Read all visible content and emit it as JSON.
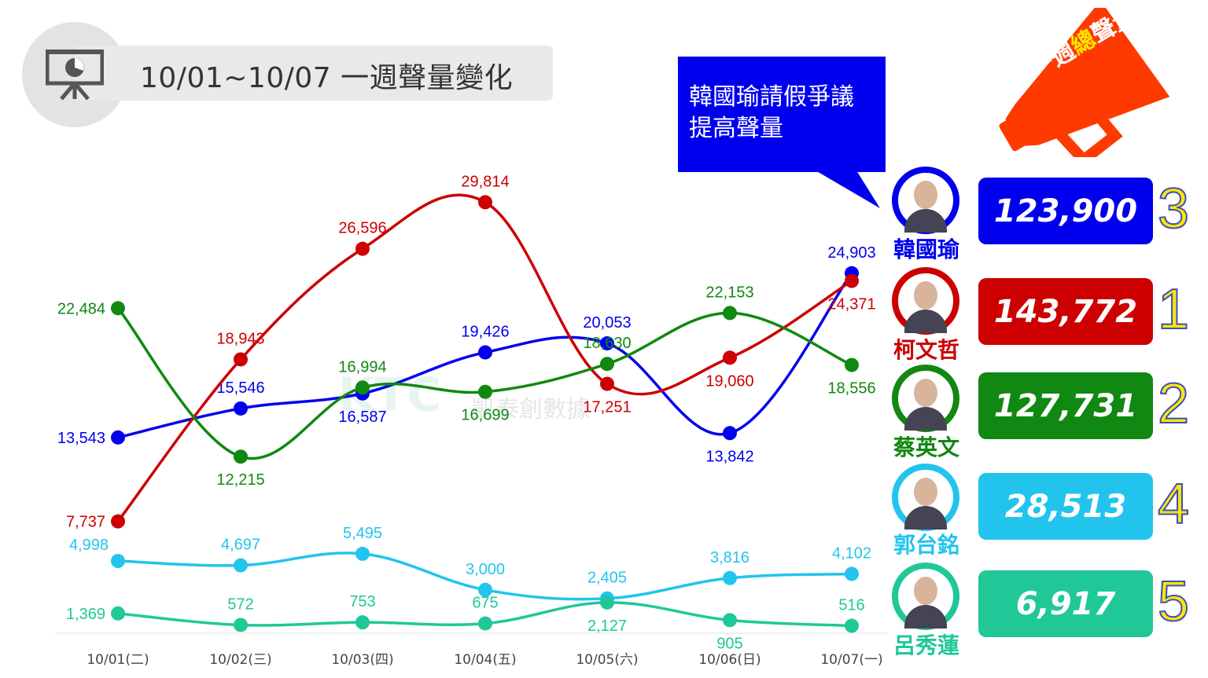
{
  "header": {
    "title": "10/01~10/07 一週聲量變化",
    "icon": "presentation-chart-icon"
  },
  "callout": {
    "line1": "韓國瑜請假爭議",
    "line2": "提高聲量"
  },
  "megaphone": {
    "text_a": "一週",
    "text_b": "總",
    "text_c": "聲量",
    "color": "#ff3a00"
  },
  "watermark": {
    "logo": "KTC",
    "text": "凱泰創數據"
  },
  "chart_data": {
    "type": "line",
    "categories": [
      "10/01(二)",
      "10/02(三)",
      "10/03(四)",
      "10/04(五)",
      "10/05(六)",
      "10/06(日)",
      "10/07(一)"
    ],
    "ylim": [
      0,
      31000
    ],
    "series": [
      {
        "name": "韓國瑜",
        "color": "#0000ee",
        "values": [
          13543,
          15546,
          16587,
          19426,
          20053,
          13842,
          24903
        ]
      },
      {
        "name": "柯文哲",
        "color": "#cc0000",
        "values": [
          7737,
          18943,
          26596,
          29814,
          17251,
          19060,
          24371
        ]
      },
      {
        "name": "蔡英文",
        "color": "#118811",
        "values": [
          22484,
          12215,
          16994,
          16699,
          18630,
          22153,
          18556
        ]
      },
      {
        "name": "郭台銘",
        "color": "#22c4ee",
        "values": [
          4998,
          4697,
          5495,
          3000,
          2405,
          3816,
          4102
        ]
      },
      {
        "name": "呂秀蓮",
        "color": "#20c898",
        "values": [
          1369,
          572,
          753,
          675,
          2127,
          905,
          516
        ]
      }
    ]
  },
  "candidates": [
    {
      "name": "韓國瑜",
      "total": "123,900",
      "rank": "3",
      "color": "#0000ee"
    },
    {
      "name": "柯文哲",
      "total": "143,772",
      "rank": "1",
      "color": "#cc0000"
    },
    {
      "name": "蔡英文",
      "total": "127,731",
      "rank": "2",
      "color": "#118811"
    },
    {
      "name": "郭台銘",
      "total": "28,513",
      "rank": "4",
      "color": "#22c4ee"
    },
    {
      "name": "呂秀蓮",
      "total": "6,917",
      "rank": "5",
      "color": "#20c898"
    }
  ]
}
